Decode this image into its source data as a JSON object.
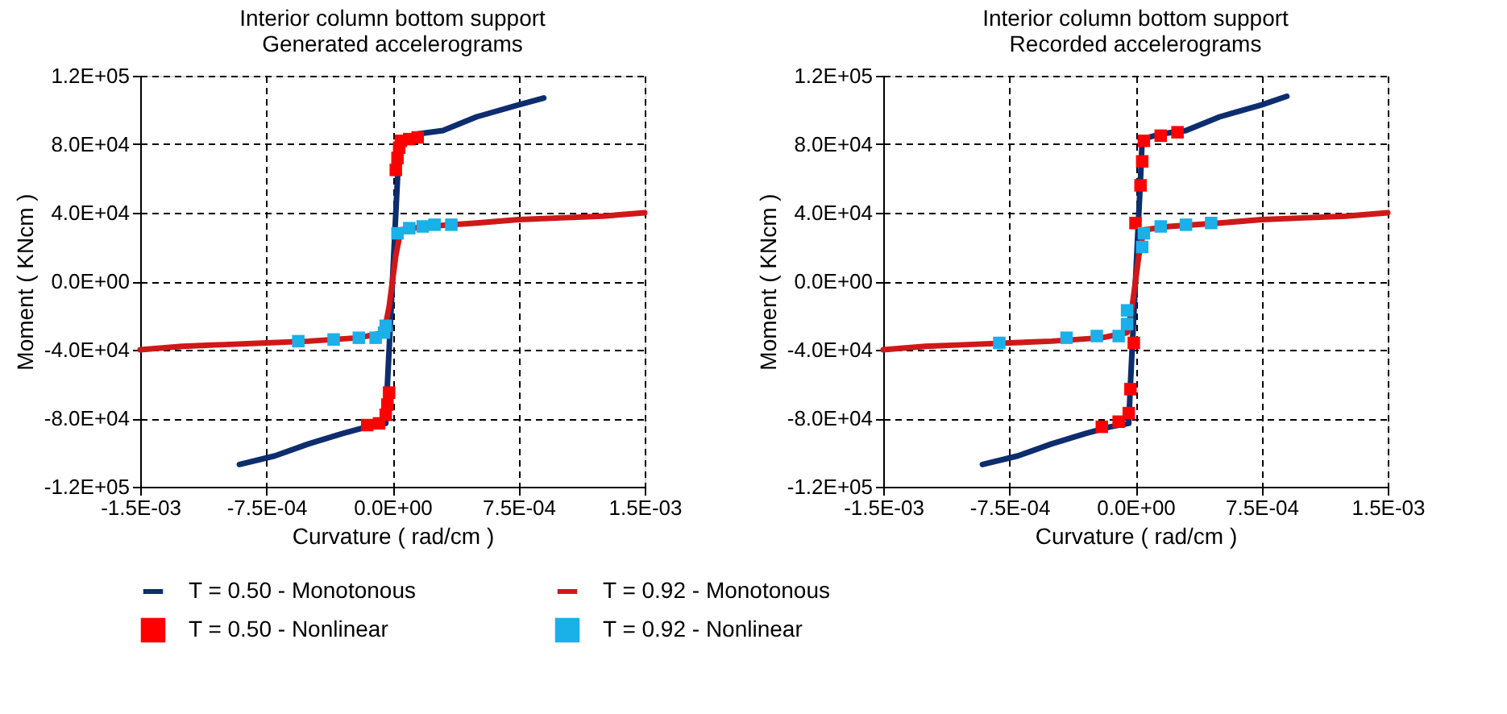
{
  "chart_data": [
    {
      "type": "line",
      "title": "Interior column bottom support\nGenerated accelerograms",
      "xlabel": "Curvature ( rad/cm )",
      "ylabel": "Moment ( KNcm )",
      "xlim": [
        -0.0015,
        0.0015
      ],
      "xticks": [
        {
          "value": -0.0015,
          "label": "-1.5E-03"
        },
        {
          "value": -0.00075,
          "label": "-7.5E-04"
        },
        {
          "value": 0,
          "label": "0.0E+00"
        },
        {
          "value": 0.00075,
          "label": "7.5E-04"
        },
        {
          "value": 0.0015,
          "label": "1.5E-03"
        }
      ],
      "ylim": [
        -120000,
        120000
      ],
      "yticks": [
        {
          "value": -120000,
          "label": "-1.2E+05"
        },
        {
          "value": -80000,
          "label": "-8.0E+04"
        },
        {
          "value": -40000,
          "label": "-4.0E+04"
        },
        {
          "value": 0,
          "label": "0.0E+00"
        },
        {
          "value": 40000,
          "label": "4.0E+04"
        },
        {
          "value": 80000,
          "label": "8.0E+04"
        },
        {
          "value": 120000,
          "label": "1.2E+05"
        }
      ],
      "grid": true,
      "legend": "bottom",
      "series": [
        {
          "name": "T = 0.50 - Monotonous",
          "color": "#0d2d6e",
          "x": [
            -0.00091,
            -0.0007,
            -0.0005,
            -0.0003,
            -0.00015,
            -4e-05,
            -3e-05,
            -1e-05,
            0,
            1e-05,
            3e-05,
            4e-05,
            0.00015,
            0.0003,
            0.0005,
            0.00075,
            0.0009
          ],
          "values": [
            -107000,
            -102000,
            -95000,
            -89000,
            -85000,
            -83000,
            -60000,
            -20000,
            0,
            20000,
            60000,
            83000,
            86000,
            88000,
            96000,
            103000,
            107000
          ]
        },
        {
          "name": "T = 0.92 - Monotonous",
          "color": "#d01818",
          "x": [
            -0.0015,
            -0.00125,
            -0.001,
            -0.00075,
            -0.0005,
            -0.0002,
            -5e-05,
            -2e-05,
            0,
            2e-05,
            5e-05,
            0.0002,
            0.0005,
            0.00075,
            0.001,
            0.00125,
            0.0015
          ],
          "values": [
            -40000,
            -38000,
            -37000,
            -36000,
            -35000,
            -33000,
            -30000,
            -15000,
            0,
            15000,
            30000,
            32000,
            34000,
            36000,
            37000,
            38000,
            40000
          ]
        },
        {
          "name": "T = 0.50 - Nonlinear",
          "type": "scatter",
          "marker": "square",
          "color": "#ff0000",
          "x": [
            2e-05,
            3e-05,
            4e-05,
            5e-05,
            0.0001,
            0.00015,
            -2e-05,
            -3e-05,
            -4e-05,
            -8e-05,
            -0.00015
          ],
          "values": [
            65000,
            72000,
            78000,
            82000,
            83000,
            84000,
            -65000,
            -72000,
            -78000,
            -83000,
            -84000
          ]
        },
        {
          "name": "T = 0.92 - Nonlinear",
          "type": "scatter",
          "marker": "square",
          "color": "#1ab0e8",
          "x": [
            3e-05,
            0.0001,
            0.00018,
            0.00025,
            0.00035,
            -0.00056,
            -0.00035,
            -0.0002,
            -0.0001,
            -5e-05,
            -4e-05
          ],
          "values": [
            28000,
            31000,
            32000,
            33000,
            33000,
            -35000,
            -34000,
            -33000,
            -33000,
            -30000,
            -26000
          ]
        }
      ]
    },
    {
      "type": "line",
      "title": "Interior column bottom support\nRecorded accelerograms",
      "xlabel": "Curvature ( rad/cm )",
      "ylabel": "Moment ( KNcm )",
      "xlim": [
        -0.0015,
        0.0015
      ],
      "xticks": [
        {
          "value": -0.0015,
          "label": "-1.5E-03"
        },
        {
          "value": -0.00075,
          "label": "-7.5E-04"
        },
        {
          "value": 0,
          "label": "0.0E+00"
        },
        {
          "value": 0.00075,
          "label": "7.5E-04"
        },
        {
          "value": 0.0015,
          "label": "1.5E-03"
        }
      ],
      "ylim": [
        -120000,
        120000
      ],
      "yticks": [
        {
          "value": -120000,
          "label": "-1.2E+05"
        },
        {
          "value": -80000,
          "label": "-8.0E+04"
        },
        {
          "value": -40000,
          "label": "-4.0E+04"
        },
        {
          "value": 0,
          "label": "0.0E+00"
        },
        {
          "value": 40000,
          "label": "4.0E+04"
        },
        {
          "value": 80000,
          "label": "8.0E+04"
        },
        {
          "value": 120000,
          "label": "1.2E+05"
        }
      ],
      "grid": true,
      "legend": "bottom",
      "series": [
        {
          "name": "T = 0.50 - Monotonous",
          "color": "#0d2d6e",
          "x": [
            -0.00091,
            -0.0007,
            -0.0005,
            -0.0003,
            -0.00015,
            -4e-05,
            -3e-05,
            -1e-05,
            0,
            1e-05,
            3e-05,
            4e-05,
            0.00015,
            0.0003,
            0.0005,
            0.00075,
            0.0009
          ],
          "values": [
            -107000,
            -102000,
            -95000,
            -89000,
            -85000,
            -83000,
            -60000,
            -20000,
            0,
            20000,
            60000,
            83000,
            86000,
            88000,
            96000,
            103000,
            108000
          ]
        },
        {
          "name": "T = 0.92 - Monotonous",
          "color": "#d01818",
          "x": [
            -0.0015,
            -0.00125,
            -0.001,
            -0.00075,
            -0.0005,
            -0.0002,
            -5e-05,
            -2e-05,
            0,
            2e-05,
            5e-05,
            0.0002,
            0.0005,
            0.00075,
            0.001,
            0.00125,
            0.0015
          ],
          "values": [
            -40000,
            -38000,
            -37000,
            -36000,
            -35000,
            -33000,
            -30000,
            -15000,
            0,
            15000,
            30000,
            32000,
            34000,
            36000,
            37000,
            38000,
            40000
          ]
        },
        {
          "name": "T = 0.50 - Nonlinear",
          "type": "scatter",
          "marker": "square",
          "color": "#ff0000",
          "x": [
            0.00025,
            0.00015,
            5e-05,
            4e-05,
            3e-05,
            0,
            -1e-05,
            -3e-05,
            -4e-05,
            -0.0001,
            -0.0002
          ],
          "values": [
            87000,
            85000,
            82000,
            70000,
            56000,
            34000,
            -36000,
            -63000,
            -77000,
            -82000,
            -85000
          ]
        },
        {
          "name": "T = 0.92 - Nonlinear",
          "type": "scatter",
          "marker": "square",
          "color": "#1ab0e8",
          "x": [
            4e-05,
            5e-05,
            0.00015,
            0.0003,
            0.00045,
            -0.00081,
            -0.00041,
            -0.00023,
            -0.0001,
            -5e-05,
            -5e-05
          ],
          "values": [
            20000,
            28000,
            32000,
            33000,
            34000,
            -36000,
            -33000,
            -32000,
            -32000,
            -25000,
            -17000
          ]
        }
      ]
    }
  ]
}
